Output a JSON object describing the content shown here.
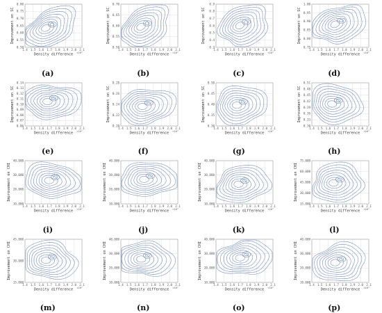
{
  "figure": {
    "x_axis_label": "Density difference",
    "x_exponent": "×10²",
    "x_ticks": [
      "1.4",
      "1.5",
      "1.6",
      "1.7",
      "1.8",
      "1.9",
      "2.0",
      "2.1"
    ]
  },
  "colors": {
    "contour": "#6c87b8",
    "grid": "#cccccc",
    "axis": "#777777"
  },
  "chart_data": [
    {
      "panel": "(a)",
      "type": "contour",
      "xlabel": "Density difference",
      "ylabel": "Improvement on SC",
      "xlim": [
        1.4,
        2.1
      ],
      "yticks": [
        "0.50",
        "0.55",
        "0.60",
        "0.65",
        "0.70",
        "0.75",
        "0.80"
      ],
      "ylim": [
        0.5,
        0.8
      ]
    },
    {
      "panel": "(b)",
      "type": "contour",
      "xlabel": "Density difference",
      "ylabel": "Improvement on SC",
      "xlim": [
        1.4,
        2.1
      ],
      "yticks": [
        "0.50",
        "0.55",
        "0.60",
        "0.65",
        "0.70"
      ],
      "ylim": [
        0.5,
        0.7
      ]
    },
    {
      "panel": "(c)",
      "type": "contour",
      "xlabel": "Density difference",
      "ylabel": "Improvement on SC",
      "xlim": [
        1.4,
        2.1
      ],
      "yticks": [
        "0.3",
        "0.4",
        "0.5",
        "0.6",
        "0.7",
        "0.8",
        "0.9"
      ],
      "ylim": [
        0.3,
        0.9
      ]
    },
    {
      "panel": "(d)",
      "type": "contour",
      "xlabel": "Density difference",
      "ylabel": "Improvement on SC",
      "xlim": [
        1.4,
        2.1
      ],
      "yticks": [
        "0.75",
        "0.80",
        "0.85",
        "0.90",
        "0.95",
        "1.00"
      ],
      "ylim": [
        0.75,
        1.0
      ]
    },
    {
      "panel": "(e)",
      "type": "contour",
      "xlabel": "Density difference",
      "ylabel": "Improvement on SC",
      "xlim": [
        1.4,
        2.1
      ],
      "yticks": [
        "0.06",
        "0.07",
        "0.08",
        "0.09",
        "0.10",
        "0.11",
        "0.12",
        "0.13",
        "0.14"
      ],
      "ylim": [
        0.06,
        0.14
      ]
    },
    {
      "panel": "(f)",
      "type": "contour",
      "xlabel": "Density difference",
      "ylabel": "Improvement on SC",
      "xlim": [
        1.4,
        2.1
      ],
      "yticks": [
        "0.20",
        "0.22",
        "0.24",
        "0.26",
        "0.28"
      ],
      "ylim": [
        0.2,
        0.28
      ]
    },
    {
      "panel": "(g)",
      "type": "contour",
      "xlabel": "Density difference",
      "ylabel": "Improvement on SC",
      "xlim": [
        1.4,
        2.1
      ],
      "yticks": [
        "0.30",
        "0.35",
        "0.40",
        "0.45",
        "0.50"
      ],
      "ylim": [
        0.3,
        0.5
      ]
    },
    {
      "panel": "(h)",
      "type": "contour",
      "xlabel": "Density difference",
      "ylabel": "Improvement on SC",
      "xlim": [
        1.4,
        2.1
      ],
      "yticks": [
        "0.30",
        "0.33",
        "0.36",
        "0.39",
        "0.42",
        "0.45",
        "0.48",
        "0.51"
      ],
      "ylim": [
        0.3,
        0.51
      ]
    },
    {
      "panel": "(i)",
      "type": "contour",
      "xlabel": "Density difference",
      "ylabel": "Improvement on CHI",
      "xlim": [
        1.4,
        2.1
      ],
      "yticks": [
        "10,000",
        "20,000",
        "30,000",
        "40,000"
      ],
      "ylim": [
        10000,
        40000
      ]
    },
    {
      "panel": "(j)",
      "type": "contour",
      "xlabel": "Density difference",
      "ylabel": "Improvement on CHI",
      "xlim": [
        1.4,
        2.1
      ],
      "yticks": [
        "10,000",
        "20,000",
        "30,000",
        "40,000"
      ],
      "ylim": [
        10000,
        40000
      ]
    },
    {
      "panel": "(k)",
      "type": "contour",
      "xlabel": "Density difference",
      "ylabel": "Improvement on CHI",
      "xlim": [
        1.4,
        2.1
      ],
      "yticks": [
        "10,000",
        "20,000",
        "30,000",
        "40,000"
      ],
      "ylim": [
        10000,
        40000
      ]
    },
    {
      "panel": "(l)",
      "type": "contour",
      "xlabel": "Density difference",
      "ylabel": "Improvement on CHI",
      "xlim": [
        1.4,
        2.1
      ],
      "yticks": [
        "15,000",
        "30,000",
        "45,000",
        "60,000",
        "75,000"
      ],
      "ylim": [
        15000,
        75000
      ]
    },
    {
      "panel": "(m)",
      "type": "contour",
      "xlabel": "Density difference",
      "ylabel": "Improvement on CHI",
      "xlim": [
        1.4,
        2.1
      ],
      "yticks": [
        "15,000",
        "30,000",
        "45,000"
      ],
      "ylim": [
        15000,
        50000
      ]
    },
    {
      "panel": "(n)",
      "type": "contour",
      "xlabel": "Density difference",
      "ylabel": "Improvement on CHI",
      "xlim": [
        1.4,
        2.1
      ],
      "yticks": [
        "10,000",
        "20,000",
        "30,000",
        "40,000"
      ],
      "ylim": [
        10000,
        40000
      ]
    },
    {
      "panel": "(o)",
      "type": "contour",
      "xlabel": "Density difference",
      "ylabel": "Improvement on CHI",
      "xlim": [
        1.4,
        2.1
      ],
      "yticks": [
        "10,000",
        "20,000",
        "30,000",
        "40,000"
      ],
      "ylim": [
        10000,
        40000
      ]
    },
    {
      "panel": "(p)",
      "type": "contour",
      "xlabel": "Density difference",
      "ylabel": "Improvement on CHI",
      "xlim": [
        1.4,
        2.1
      ],
      "yticks": [
        "10,000",
        "20,000",
        "30,000",
        "40,000"
      ],
      "ylim": [
        10000,
        40000
      ]
    }
  ]
}
